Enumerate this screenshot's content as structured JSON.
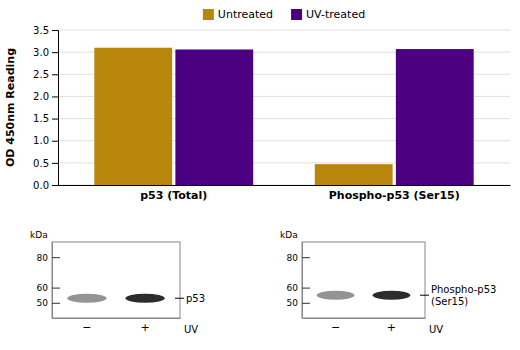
{
  "chart_data": [
    {
      "type": "bar",
      "categories": [
        "p53 (Total)",
        "Phospho-p53 (Ser15)"
      ],
      "series": [
        {
          "name": "Untreated",
          "color": "#B8860B",
          "values": [
            3.1,
            0.47
          ]
        },
        {
          "name": "UV-treated",
          "color": "#4B0082",
          "values": [
            3.06,
            3.07
          ]
        }
      ],
      "ylabel": "OD 450nm Reading",
      "ylim": [
        0,
        3.5
      ],
      "yticks": [
        {
          "value": 0,
          "label": "0.0"
        },
        0.5,
        {
          "value": 1,
          "label": "1.0"
        },
        1.5,
        {
          "value": 2,
          "label": "2.0"
        },
        2.5,
        {
          "value": 3,
          "label": "3.0"
        },
        3.5
      ],
      "grid": true,
      "legend": "top"
    },
    {
      "type": "blot",
      "categories": [
        "−",
        "+"
      ],
      "values": [
        53,
        53
      ],
      "ylim": [
        40,
        90
      ],
      "yticks": [
        50,
        60,
        80
      ],
      "ylabel": "kDa",
      "xlabel": "UV",
      "annotation": "p53"
    },
    {
      "type": "blot",
      "categories": [
        "−",
        "+"
      ],
      "values": [
        55,
        55
      ],
      "ylim": [
        40,
        90
      ],
      "yticks": [
        50,
        60,
        80
      ],
      "ylabel": "kDa",
      "xlabel": "UV",
      "annotation": "Phospho-p53\n(Ser15)"
    }
  ]
}
